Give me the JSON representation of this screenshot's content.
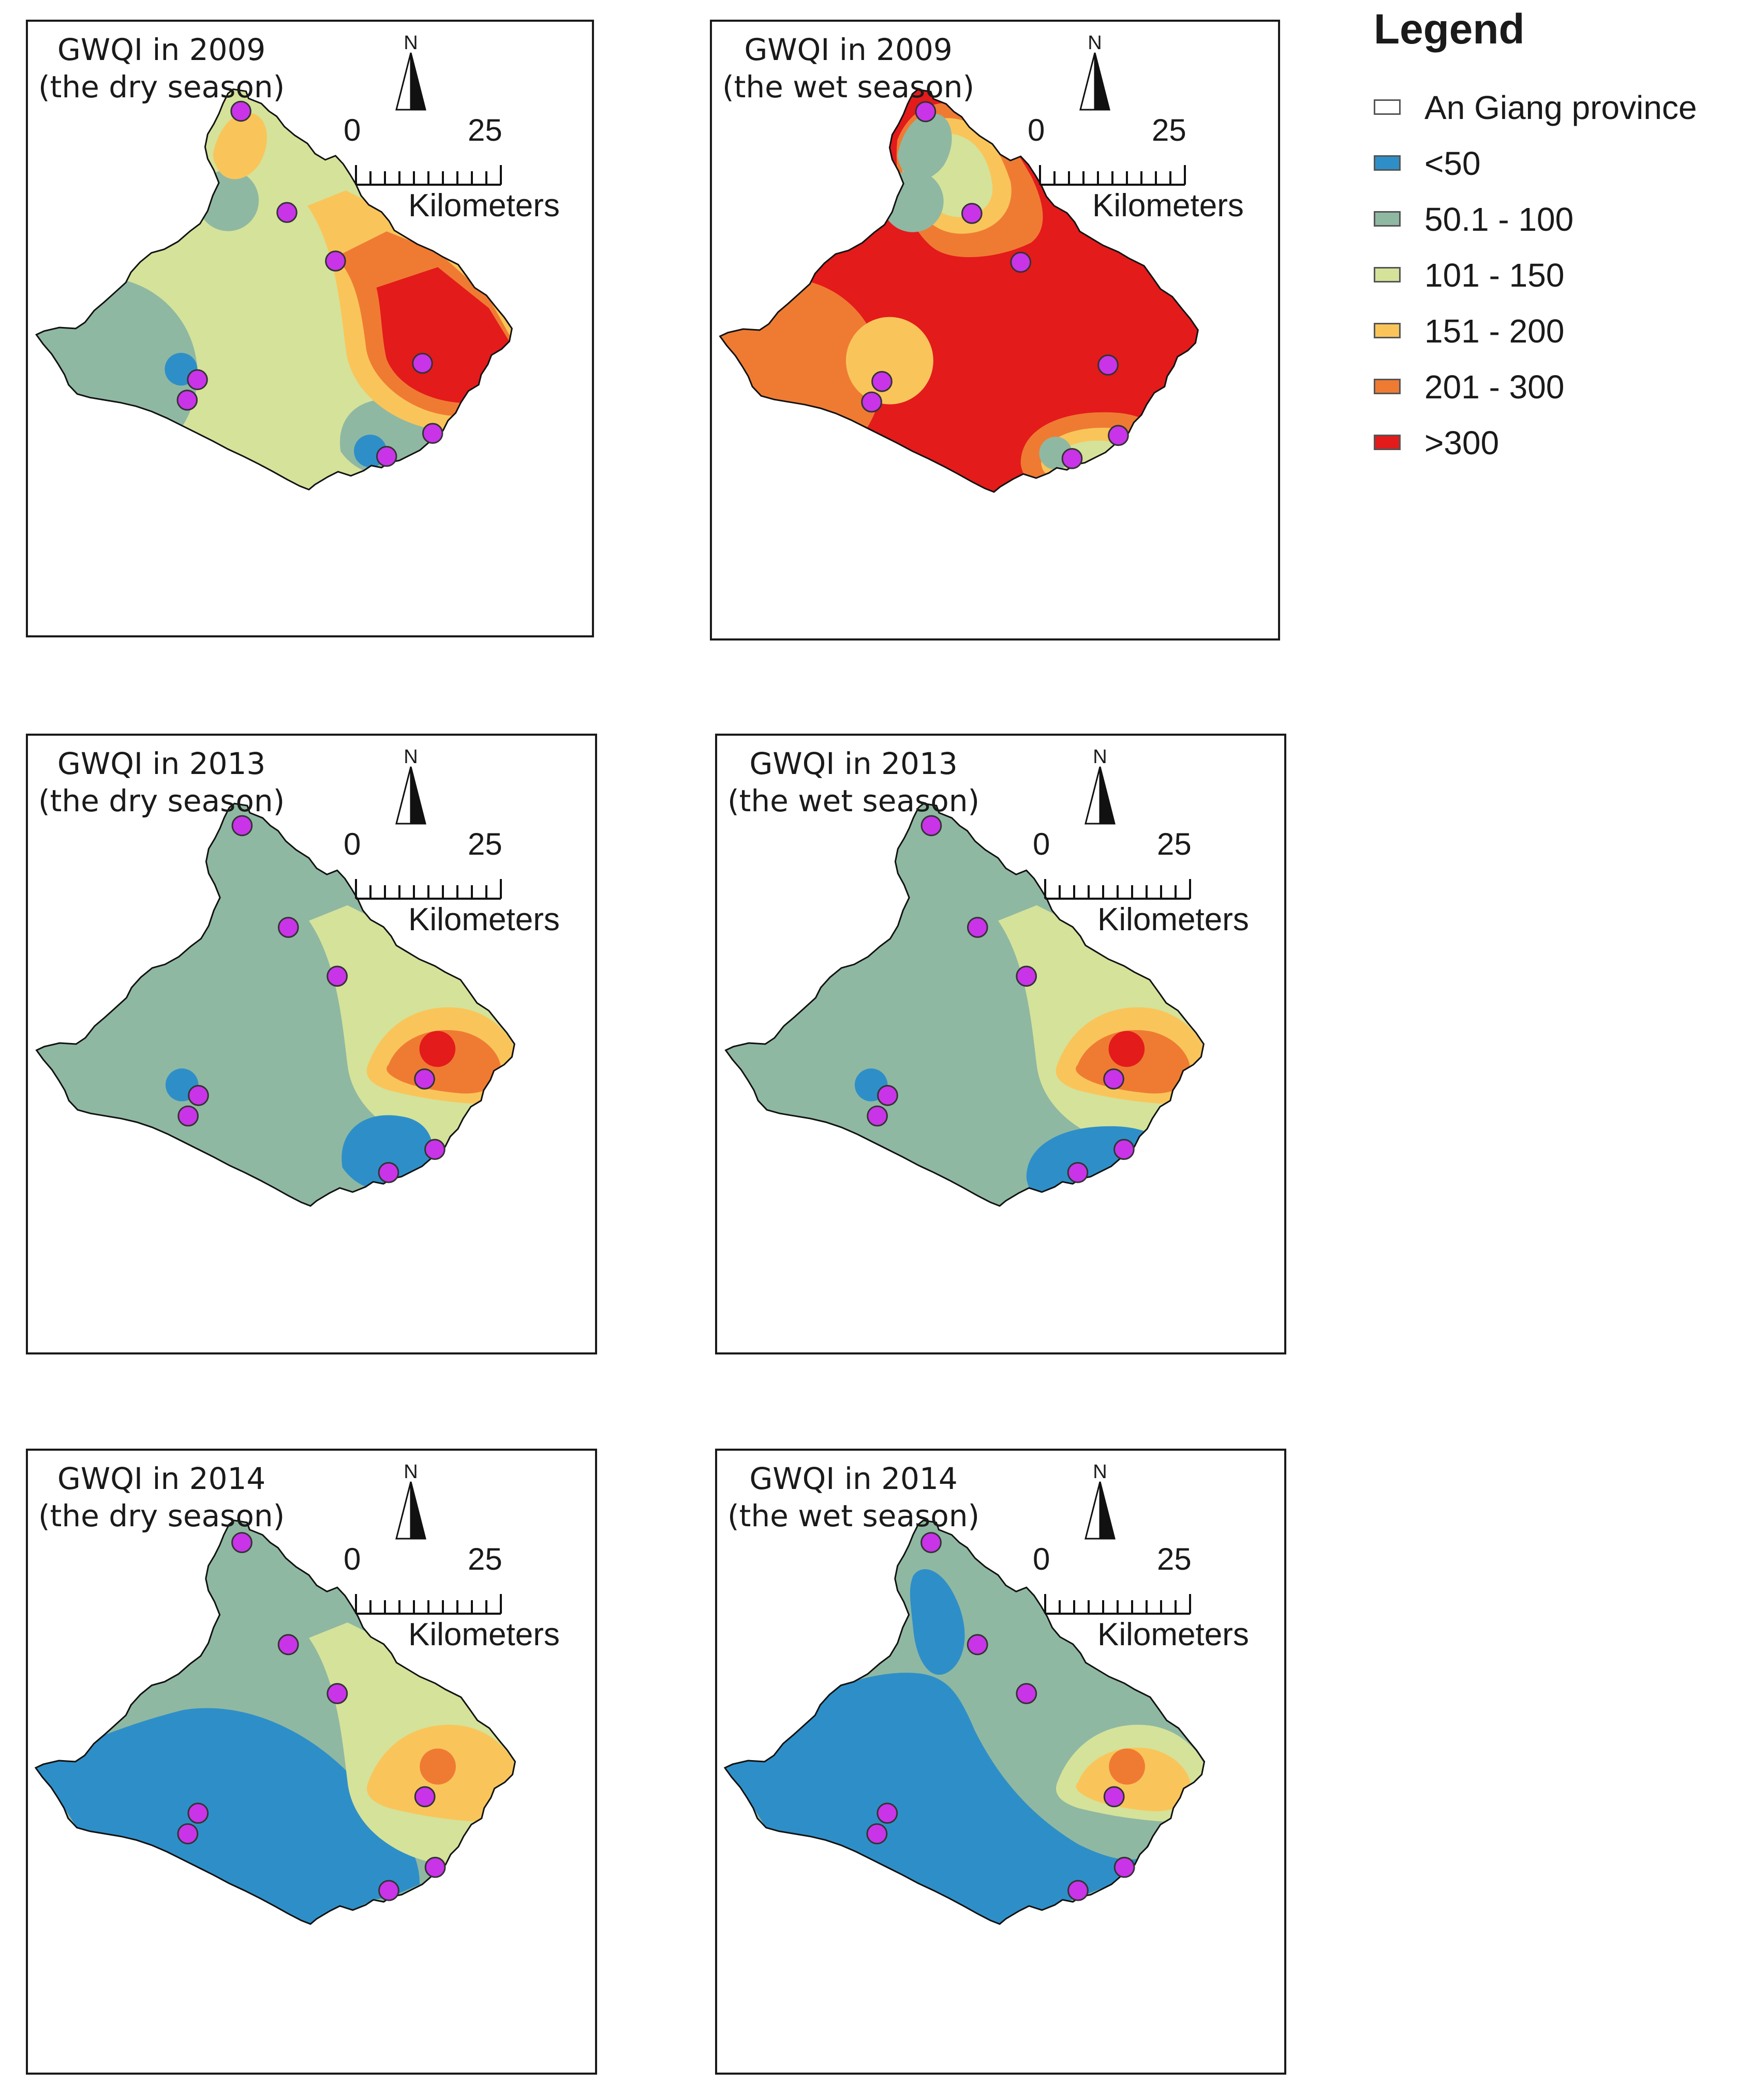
{
  "legend": {
    "title": "Legend",
    "items": [
      {
        "label": "An Giang province",
        "color": "#ffffff"
      },
      {
        "label": "<50",
        "color": "#2e8fc8"
      },
      {
        "label": "50.1 - 100",
        "color": "#8fb8a2"
      },
      {
        "label": "101 - 150",
        "color": "#d5e29a"
      },
      {
        "label": "151 - 200",
        "color": "#f9c55a"
      },
      {
        "label": "201 - 300",
        "color": "#ef7b33"
      },
      {
        "label": ">300",
        "color": "#e31b1b"
      }
    ]
  },
  "scalebar": {
    "start": "0",
    "end": "25",
    "units": "Kilometers"
  },
  "north_label": "N",
  "panels": [
    {
      "title_line1": "GWQI in 2009",
      "title_line2": "(the dry season)",
      "base": "#d5e29a",
      "zones": [
        {
          "cls": "50.1 - 100",
          "color": "#8fb8a2",
          "shape": "w-circle"
        },
        {
          "cls": "<50",
          "color": "#2e8fc8",
          "shape": "w-dot"
        },
        {
          "cls": "50.1 - 100",
          "color": "#8fb8a2",
          "shape": "se-blob"
        },
        {
          "cls": "<50",
          "color": "#2e8fc8",
          "shape": "se-dot"
        },
        {
          "cls": "50.1 - 100",
          "color": "#8fb8a2",
          "shape": "n-dot"
        },
        {
          "cls": "151 - 200",
          "color": "#f9c55a",
          "shape": "top-tip"
        },
        {
          "cls": "151 - 200",
          "color": "#f9c55a",
          "shape": "e-band3"
        },
        {
          "cls": "201 - 300",
          "color": "#ef7b33",
          "shape": "e-band2"
        },
        {
          "cls": ">300",
          "color": "#e31b1b",
          "shape": "e-band1"
        }
      ]
    },
    {
      "title_line1": "GWQI in 2009",
      "title_line2": "(the wet season)",
      "base": "#e31b1b",
      "zones": [
        {
          "cls": "201 - 300",
          "color": "#ef7b33",
          "shape": "n-arm"
        },
        {
          "cls": "151 - 200",
          "color": "#f9c55a",
          "shape": "n-arm-inner"
        },
        {
          "cls": "101 - 150",
          "color": "#d5e29a",
          "shape": "n-arm-core"
        },
        {
          "cls": "50.1 - 100",
          "color": "#8fb8a2",
          "shape": "n-dot"
        },
        {
          "cls": "50.1 - 100",
          "color": "#8fb8a2",
          "shape": "top-tip"
        },
        {
          "cls": "201 - 300",
          "color": "#ef7b33",
          "shape": "w-circle"
        },
        {
          "cls": "151 - 200",
          "color": "#f9c55a",
          "shape": "w-ring"
        },
        {
          "cls": "201 - 300",
          "color": "#ef7b33",
          "shape": "se-wide"
        },
        {
          "cls": "151 - 200",
          "color": "#f9c55a",
          "shape": "se-mid"
        },
        {
          "cls": "101 - 150",
          "color": "#d5e29a",
          "shape": "se-small"
        },
        {
          "cls": "50.1 - 100",
          "color": "#8fb8a2",
          "shape": "se-dot"
        }
      ]
    },
    {
      "title_line1": "GWQI in 2013",
      "title_line2": "(the dry season)",
      "base": "#8fb8a2",
      "zones": [
        {
          "cls": "101 - 150",
          "color": "#d5e29a",
          "shape": "e-band3"
        },
        {
          "cls": "151 - 200",
          "color": "#f9c55a",
          "shape": "e-arc2"
        },
        {
          "cls": "201 - 300",
          "color": "#ef7b33",
          "shape": "e-arc1"
        },
        {
          "cls": ">300",
          "color": "#e31b1b",
          "shape": "e-dot"
        },
        {
          "cls": "<50",
          "color": "#2e8fc8",
          "shape": "w-dot"
        },
        {
          "cls": "<50",
          "color": "#2e8fc8",
          "shape": "se-blob"
        }
      ]
    },
    {
      "title_line1": "GWQI in 2013",
      "title_line2": "(the wet season)",
      "base": "#8fb8a2",
      "zones": [
        {
          "cls": "101 - 150",
          "color": "#d5e29a",
          "shape": "e-band3"
        },
        {
          "cls": "151 - 200",
          "color": "#f9c55a",
          "shape": "e-arc2"
        },
        {
          "cls": "201 - 300",
          "color": "#ef7b33",
          "shape": "e-arc1"
        },
        {
          "cls": ">300",
          "color": "#e31b1b",
          "shape": "e-dot"
        },
        {
          "cls": "<50",
          "color": "#2e8fc8",
          "shape": "w-dot"
        },
        {
          "cls": "<50",
          "color": "#2e8fc8",
          "shape": "se-wide"
        }
      ]
    },
    {
      "title_line1": "GWQI in 2014",
      "title_line2": "(the dry season)",
      "base": "#8fb8a2",
      "zones": [
        {
          "cls": "<50",
          "color": "#2e8fc8",
          "shape": "sw-half"
        },
        {
          "cls": "101 - 150",
          "color": "#d5e29a",
          "shape": "e-band3"
        },
        {
          "cls": "151 - 200",
          "color": "#f9c55a",
          "shape": "e-arc2"
        },
        {
          "cls": "201 - 300",
          "color": "#ef7b33",
          "shape": "e-dot"
        }
      ]
    },
    {
      "title_line1": "GWQI in 2014",
      "title_line2": "(the wet season)",
      "base": "#8fb8a2",
      "zones": [
        {
          "cls": "<50",
          "color": "#2e8fc8",
          "shape": "sw-most"
        },
        {
          "cls": "<50",
          "color": "#2e8fc8",
          "shape": "n-arm-blue"
        },
        {
          "cls": "101 - 150",
          "color": "#d5e29a",
          "shape": "e-arc2"
        },
        {
          "cls": "151 - 200",
          "color": "#f9c55a",
          "shape": "e-arc1"
        },
        {
          "cls": "201 - 300",
          "color": "#ef7b33",
          "shape": "e-dot"
        }
      ]
    }
  ],
  "sampling_point_color": "#c934e8"
}
